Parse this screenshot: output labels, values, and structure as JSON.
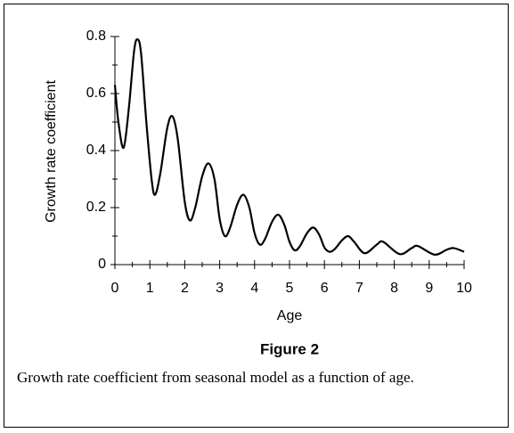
{
  "chart_data": {
    "type": "line",
    "x_label": "Age",
    "y_label": "Growth rate coefficient",
    "figure_label": "Figure 2",
    "caption": "Growth rate coefficient from seasonal model as a function of age.",
    "x": [
      0,
      0.1,
      0.25,
      0.4,
      0.55,
      0.65,
      0.75,
      0.9,
      1.05,
      1.15,
      1.3,
      1.5,
      1.65,
      1.8,
      2.0,
      2.15,
      2.3,
      2.5,
      2.68,
      2.85,
      3.0,
      3.15,
      3.3,
      3.5,
      3.68,
      3.85,
      4.0,
      4.15,
      4.3,
      4.5,
      4.68,
      4.85,
      5.0,
      5.15,
      5.3,
      5.5,
      5.68,
      5.85,
      6.0,
      6.15,
      6.3,
      6.5,
      6.68,
      6.85,
      7.15,
      7.5,
      7.68,
      8.15,
      8.5,
      8.68,
      9.15,
      9.5,
      9.7,
      10
    ],
    "values": [
      0.63,
      0.5,
      0.41,
      0.55,
      0.75,
      0.79,
      0.74,
      0.5,
      0.3,
      0.245,
      0.32,
      0.48,
      0.52,
      0.44,
      0.22,
      0.155,
      0.2,
      0.31,
      0.355,
      0.3,
      0.16,
      0.1,
      0.13,
      0.21,
      0.245,
      0.2,
      0.11,
      0.07,
      0.09,
      0.15,
      0.175,
      0.14,
      0.08,
      0.05,
      0.065,
      0.11,
      0.13,
      0.105,
      0.06,
      0.045,
      0.055,
      0.085,
      0.1,
      0.08,
      0.04,
      0.07,
      0.08,
      0.037,
      0.058,
      0.065,
      0.035,
      0.052,
      0.058,
      0.045
    ],
    "color": "#000000",
    "xlim": [
      0,
      10
    ],
    "xticks": [
      0,
      1,
      2,
      3,
      4,
      5,
      6,
      7,
      8,
      9,
      10
    ],
    "xminorticks": [
      0.5,
      1.5,
      2.5,
      3.5,
      4.5,
      5.5,
      6.5,
      7.5,
      8.5,
      9.5
    ],
    "ylim": [
      0,
      0.8
    ],
    "yticks": [
      0,
      0.2,
      0.4,
      0.6,
      0.8
    ],
    "yminorticks": [
      0.1,
      0.3,
      0.5,
      0.7
    ],
    "grid": false
  }
}
